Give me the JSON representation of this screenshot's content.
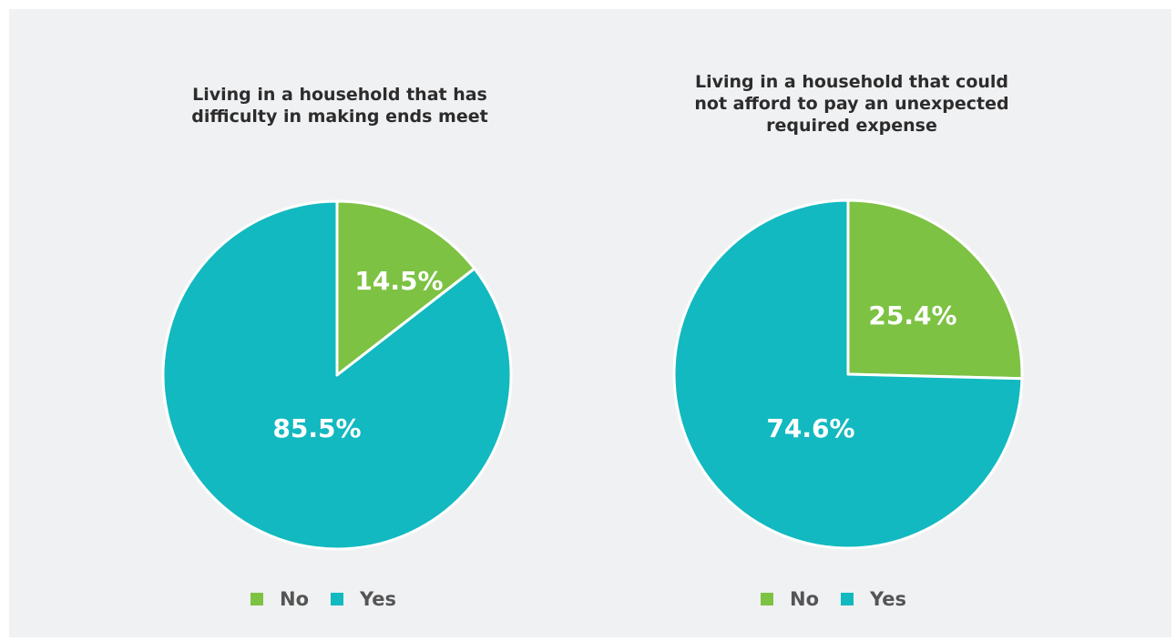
{
  "colors": {
    "no": "#7dc243",
    "yes": "#12b9c0",
    "background": "#f0f1f3"
  },
  "chart_data": [
    {
      "type": "pie",
      "title": "Living in a household that has\ndifficulty in making ends meet",
      "slices": [
        {
          "name": "No",
          "value": 14.5,
          "label": "14.5%",
          "color": "#7dc243"
        },
        {
          "name": "Yes",
          "value": 85.5,
          "label": "85.5%",
          "color": "#12b9c0"
        }
      ],
      "legend": [
        "No",
        "Yes"
      ],
      "legend_position": "bottom"
    },
    {
      "type": "pie",
      "title": "Living in a household that could\nnot afford to pay an unexpected\nrequired expense",
      "slices": [
        {
          "name": "No",
          "value": 25.4,
          "label": "25.4%",
          "color": "#7dc243"
        },
        {
          "name": "Yes",
          "value": 74.6,
          "label": "74.6%",
          "color": "#12b9c0"
        }
      ],
      "legend": [
        "No",
        "Yes"
      ],
      "legend_position": "bottom"
    }
  ]
}
